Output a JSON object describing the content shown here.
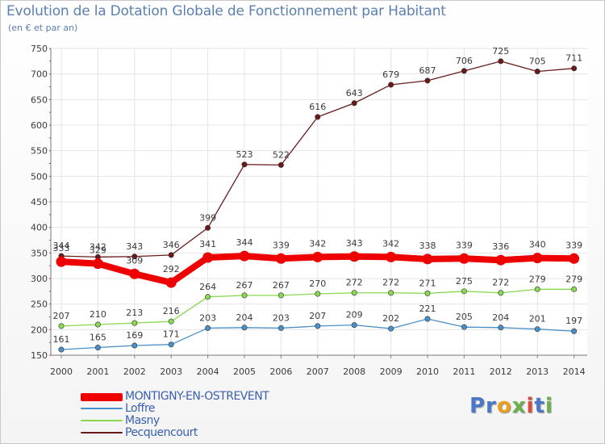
{
  "title": "Evolution de la Dotation Globale de Fonctionnement par Habitant",
  "subtitle": "(en € et par an)",
  "logo": "Proxiti",
  "colors": {
    "montigny": "#ee0000",
    "loffre": "#4a90c8",
    "masny": "#88d850",
    "pecquencourt": "#6b1a1a",
    "axis_text": "#3a3a3a",
    "grid": "#e4e4e4"
  },
  "chart_data": {
    "type": "line",
    "title": "Evolution de la Dotation Globale de Fonctionnement par Habitant",
    "subtitle": "(en € et par an)",
    "xlabel": "",
    "ylabel": "",
    "ylim": [
      150,
      750
    ],
    "yticks": [
      150,
      200,
      250,
      300,
      350,
      400,
      450,
      500,
      550,
      600,
      650,
      700,
      750
    ],
    "x": [
      "2000",
      "2001",
      "2002",
      "2003",
      "2004",
      "2005",
      "2006",
      "2007",
      "2008",
      "2009",
      "2010",
      "2011",
      "2012",
      "2013",
      "2014"
    ],
    "series": [
      {
        "key": "pecquencourt",
        "name": "Pecquencourt",
        "values": [
          344,
          342,
          343,
          346,
          399,
          523,
          522,
          616,
          643,
          679,
          687,
          706,
          725,
          705,
          711
        ]
      },
      {
        "key": "masny",
        "name": "Masny",
        "values": [
          207,
          210,
          213,
          216,
          264,
          267,
          267,
          270,
          272,
          272,
          271,
          275,
          272,
          279,
          279
        ]
      },
      {
        "key": "loffre",
        "name": "Loffre",
        "values": [
          161,
          165,
          169,
          171,
          203,
          204,
          203,
          207,
          209,
          202,
          221,
          205,
          204,
          201,
          197
        ]
      },
      {
        "key": "montigny",
        "name": "MONTIGNY-EN-OSTREVENT",
        "values": [
          333,
          329,
          309,
          292,
          341,
          344,
          339,
          342,
          343,
          342,
          338,
          339,
          336,
          340,
          339
        ]
      }
    ],
    "legend_order": [
      "montigny",
      "loffre",
      "masny",
      "pecquencourt"
    ]
  },
  "legend": [
    {
      "key": "montigny",
      "label": "MONTIGNY-EN-OSTREVENT"
    },
    {
      "key": "loffre",
      "label": "Loffre"
    },
    {
      "key": "masny",
      "label": "Masny"
    },
    {
      "key": "pecquencourt",
      "label": "Pecquencourt"
    }
  ]
}
